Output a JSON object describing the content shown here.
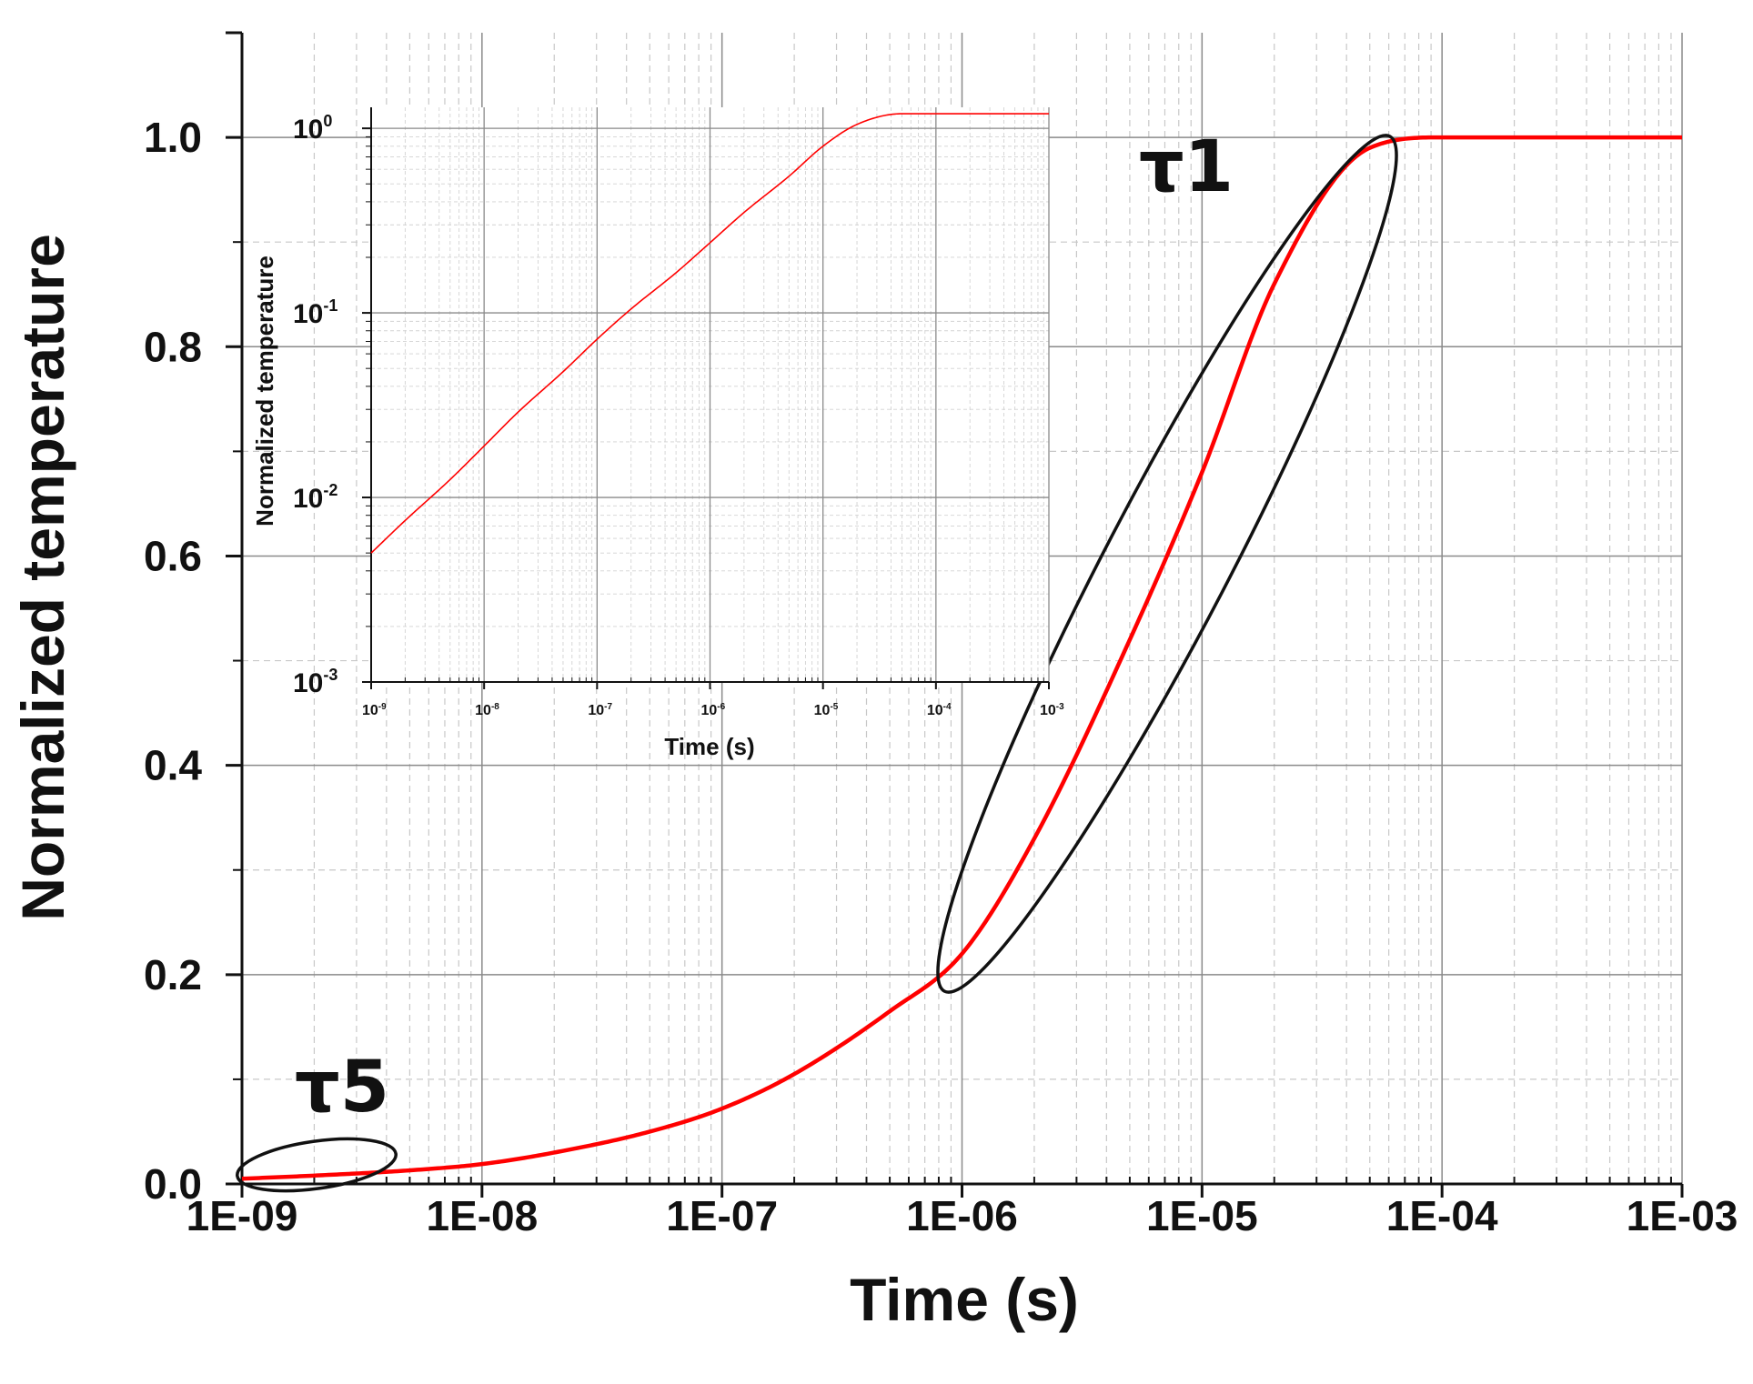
{
  "chart_data": [
    {
      "type": "line",
      "title": "",
      "xlabel": "Time (s)",
      "ylabel": "Normalized temperature",
      "xscale": "log",
      "xlim": [
        1e-09,
        0.001
      ],
      "ylim": [
        0.0,
        1.1
      ],
      "grid": true,
      "x_tick_labels": [
        "1E-09",
        "1E-08",
        "1E-07",
        "1E-06",
        "1E-05",
        "1E-04",
        "1E-03"
      ],
      "y_tick_labels": [
        "0.0",
        "0.2",
        "0.4",
        "0.6",
        "0.8",
        "1.0"
      ],
      "series": [
        {
          "name": "Normalized temperature",
          "color": "#ff0000",
          "x": [
            1e-09,
            2e-09,
            5e-09,
            1e-08,
            2e-08,
            5e-08,
            1e-07,
            2e-07,
            5e-07,
            1e-06,
            2e-06,
            5e-06,
            1e-05,
            2e-05,
            5e-05,
            0.0001,
            0.0002,
            0.0005,
            0.001
          ],
          "y": [
            0.005,
            0.008,
            0.013,
            0.019,
            0.03,
            0.05,
            0.072,
            0.105,
            0.165,
            0.22,
            0.33,
            0.52,
            0.68,
            0.86,
            0.99,
            1.0,
            1.0,
            1.0,
            1.0
          ]
        }
      ],
      "annotations": [
        {
          "label": "τ1",
          "x": 6.5e-06,
          "y": 0.6,
          "description": "ellipse around the steep rise"
        },
        {
          "label": "τ5",
          "x": 2e-09,
          "y": 0.008,
          "description": "ellipse around the early onset"
        }
      ]
    },
    {
      "type": "line",
      "title": "",
      "xlabel": "Time (s)",
      "ylabel": "Normalized temperature",
      "xscale": "log",
      "yscale": "log",
      "xlim": [
        1e-09,
        0.001
      ],
      "ylim": [
        0.001,
        1.3
      ],
      "grid": true,
      "x_tick_labels": [
        {
          "base": "10",
          "exp": "-9"
        },
        {
          "base": "10",
          "exp": "-8"
        },
        {
          "base": "10",
          "exp": "-7"
        },
        {
          "base": "10",
          "exp": "-6"
        },
        {
          "base": "10",
          "exp": "-5"
        },
        {
          "base": "10",
          "exp": "-4"
        },
        {
          "base": "10",
          "exp": "-3"
        }
      ],
      "y_tick_labels": [
        {
          "base": "10",
          "exp": "-3"
        },
        {
          "base": "10",
          "exp": "-2"
        },
        {
          "base": "10",
          "exp": "-1"
        },
        {
          "base": "10",
          "exp": "0"
        }
      ],
      "series": [
        {
          "name": "Normalized temperature (log-log inset)",
          "color": "#ff0000",
          "x": [
            1e-09,
            2e-09,
            5e-09,
            1e-08,
            2e-08,
            5e-08,
            1e-07,
            2e-07,
            5e-07,
            1e-06,
            2e-06,
            5e-06,
            1e-05,
            2e-05,
            5e-05,
            0.0001,
            0.0002,
            0.0005,
            0.001
          ],
          "y": [
            0.005,
            0.0075,
            0.0125,
            0.019,
            0.029,
            0.048,
            0.072,
            0.105,
            0.165,
            0.24,
            0.35,
            0.55,
            0.8,
            1.05,
            1.2,
            1.2,
            1.2,
            1.2,
            1.2
          ]
        }
      ]
    }
  ]
}
